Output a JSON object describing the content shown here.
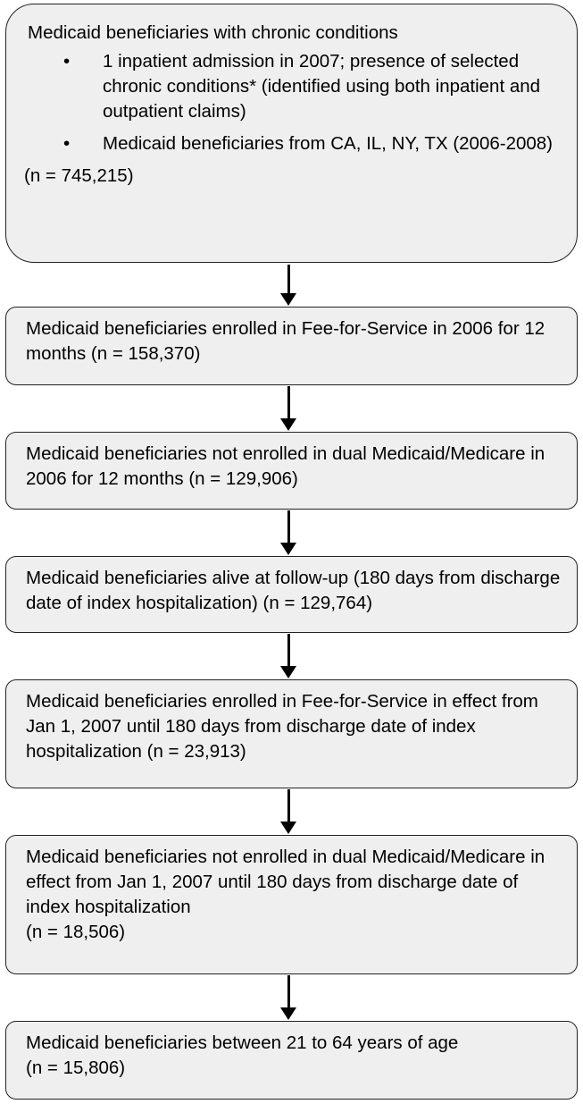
{
  "boxes": [
    {
      "heading": "Medicaid beneficiaries with chronic conditions",
      "bullets": [
        "1 inpatient admission in 2007; presence of selected chronic conditions* (identified using both inpatient and outpatient claims)",
        "Medicaid beneficiaries from CA, IL, NY, TX (2006-2008)"
      ],
      "count": "(n = 745,215)"
    },
    {
      "text": "Medicaid beneficiaries enrolled in Fee-for-Service in 2006 for 12 months (n = 158,370)"
    },
    {
      "text": "Medicaid beneficiaries not enrolled in dual Medicaid/Medicare in 2006 for 12 months (n = 129,906)"
    },
    {
      "text": "Medicaid beneficiaries alive at follow-up (180 days from discharge date of index hospitalization) (n = 129,764)"
    },
    {
      "text": "Medicaid beneficiaries enrolled in Fee-for-Service in effect from Jan 1, 2007 until 180 days from discharge date of index hospitalization (n = 23,913)"
    },
    {
      "text": "Medicaid beneficiaries not enrolled in dual Medicaid/Medicare in effect from Jan 1, 2007 until 180 days from discharge date of index hospitalization",
      "count": "(n = 18,506)"
    },
    {
      "text": "Medicaid beneficiaries between 21 to 64 years of age",
      "count": "(n = 15,806)"
    }
  ],
  "bullet_symbol": "•"
}
